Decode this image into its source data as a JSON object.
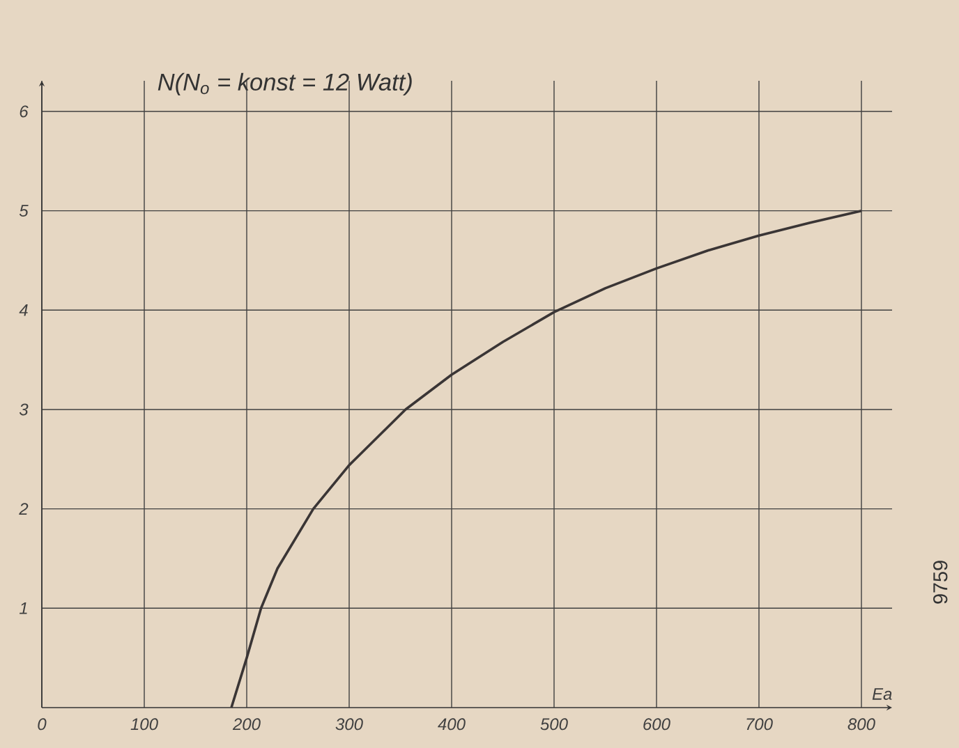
{
  "chart_data": {
    "type": "line",
    "ylabel": "N(N$_{o}$ = konst = 12 Watt)",
    "xlabel": "Ea",
    "x": [
      185,
      200,
      214,
      230,
      265,
      300,
      355,
      400,
      450,
      500,
      550,
      600,
      650,
      700,
      750,
      800
    ],
    "series": [
      {
        "color": "#3a3535",
        "values": [
          0,
          0.5,
          1,
          1.4,
          2,
          2.44,
          3,
          3.35,
          3.68,
          3.98,
          4.22,
          4.42,
          4.6,
          4.75,
          4.88,
          5.0
        ]
      }
    ],
    "xlim": [
      0,
      800
    ],
    "ylim": [
      0,
      6
    ],
    "xticks": [
      0,
      100,
      200,
      300,
      400,
      500,
      600,
      700,
      800
    ],
    "yticks": [
      1,
      2,
      3,
      4,
      5,
      6
    ],
    "grid": true,
    "marker": "none",
    "line_style": "solid",
    "annotations": [
      "9759"
    ]
  }
}
